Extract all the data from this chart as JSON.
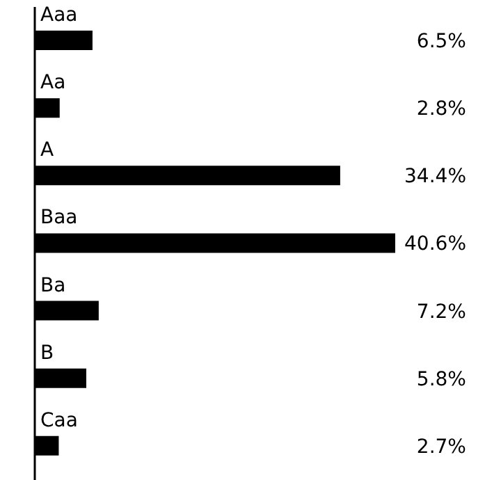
{
  "chart_data": {
    "type": "bar",
    "orientation": "horizontal",
    "categories": [
      "Aaa",
      "Aa",
      "A",
      "Baa",
      "Ba",
      "B",
      "Caa"
    ],
    "values": [
      6.5,
      2.8,
      34.4,
      40.6,
      7.2,
      5.8,
      2.7
    ],
    "value_labels": [
      "6.5%",
      "2.8%",
      "34.4%",
      "40.6%",
      "7.2%",
      "5.8%",
      "2.7%"
    ],
    "color": "#000000"
  }
}
